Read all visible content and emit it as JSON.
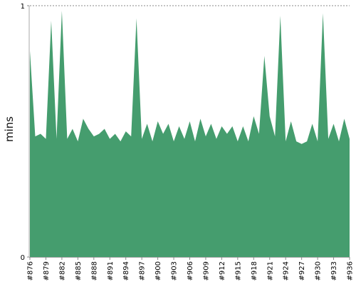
{
  "chart_data": {
    "type": "area",
    "title": "",
    "xlabel": "",
    "ylabel": "mins",
    "ylim": [
      0,
      1
    ],
    "y_ticks": [
      {
        "value": 0,
        "label": "0"
      },
      {
        "value": 1,
        "label": "1"
      }
    ],
    "x_tick_labels": [
      "#876",
      "#879",
      "#882",
      "#885",
      "#888",
      "#891",
      "#894",
      "#897",
      "#900",
      "#903",
      "#906",
      "#909",
      "#912",
      "#915",
      "#918",
      "#921",
      "#924",
      "#927",
      "#930",
      "#933",
      "#936"
    ],
    "grid": false,
    "legend": "none",
    "fill_color": "#459d6e",
    "top_reference_line": true,
    "series": [
      {
        "x": [
          876,
          877,
          878,
          879,
          880,
          881,
          882,
          883,
          884,
          885,
          886,
          887,
          888,
          889,
          890,
          891,
          892,
          893,
          894,
          895,
          896,
          897,
          898,
          899,
          900,
          901,
          902,
          903,
          904,
          905,
          906,
          907,
          908,
          909,
          910,
          911,
          912,
          913,
          914,
          915,
          916,
          917,
          918,
          919,
          920,
          921,
          922,
          923,
          924,
          925,
          926,
          927,
          928,
          929,
          930,
          931,
          932,
          933,
          934,
          935,
          936
        ],
        "values": [
          0.82,
          0.48,
          0.49,
          0.47,
          0.94,
          0.47,
          0.98,
          0.47,
          0.51,
          0.46,
          0.55,
          0.51,
          0.48,
          0.49,
          0.51,
          0.47,
          0.49,
          0.46,
          0.5,
          0.48,
          0.95,
          0.47,
          0.53,
          0.46,
          0.54,
          0.49,
          0.53,
          0.46,
          0.52,
          0.47,
          0.54,
          0.46,
          0.55,
          0.48,
          0.53,
          0.47,
          0.52,
          0.49,
          0.52,
          0.46,
          0.52,
          0.46,
          0.56,
          0.49,
          0.8,
          0.56,
          0.48,
          0.96,
          0.46,
          0.54,
          0.46,
          0.45,
          0.46,
          0.53,
          0.46,
          0.97,
          0.47,
          0.53,
          0.46,
          0.55,
          0.47
        ]
      }
    ]
  }
}
